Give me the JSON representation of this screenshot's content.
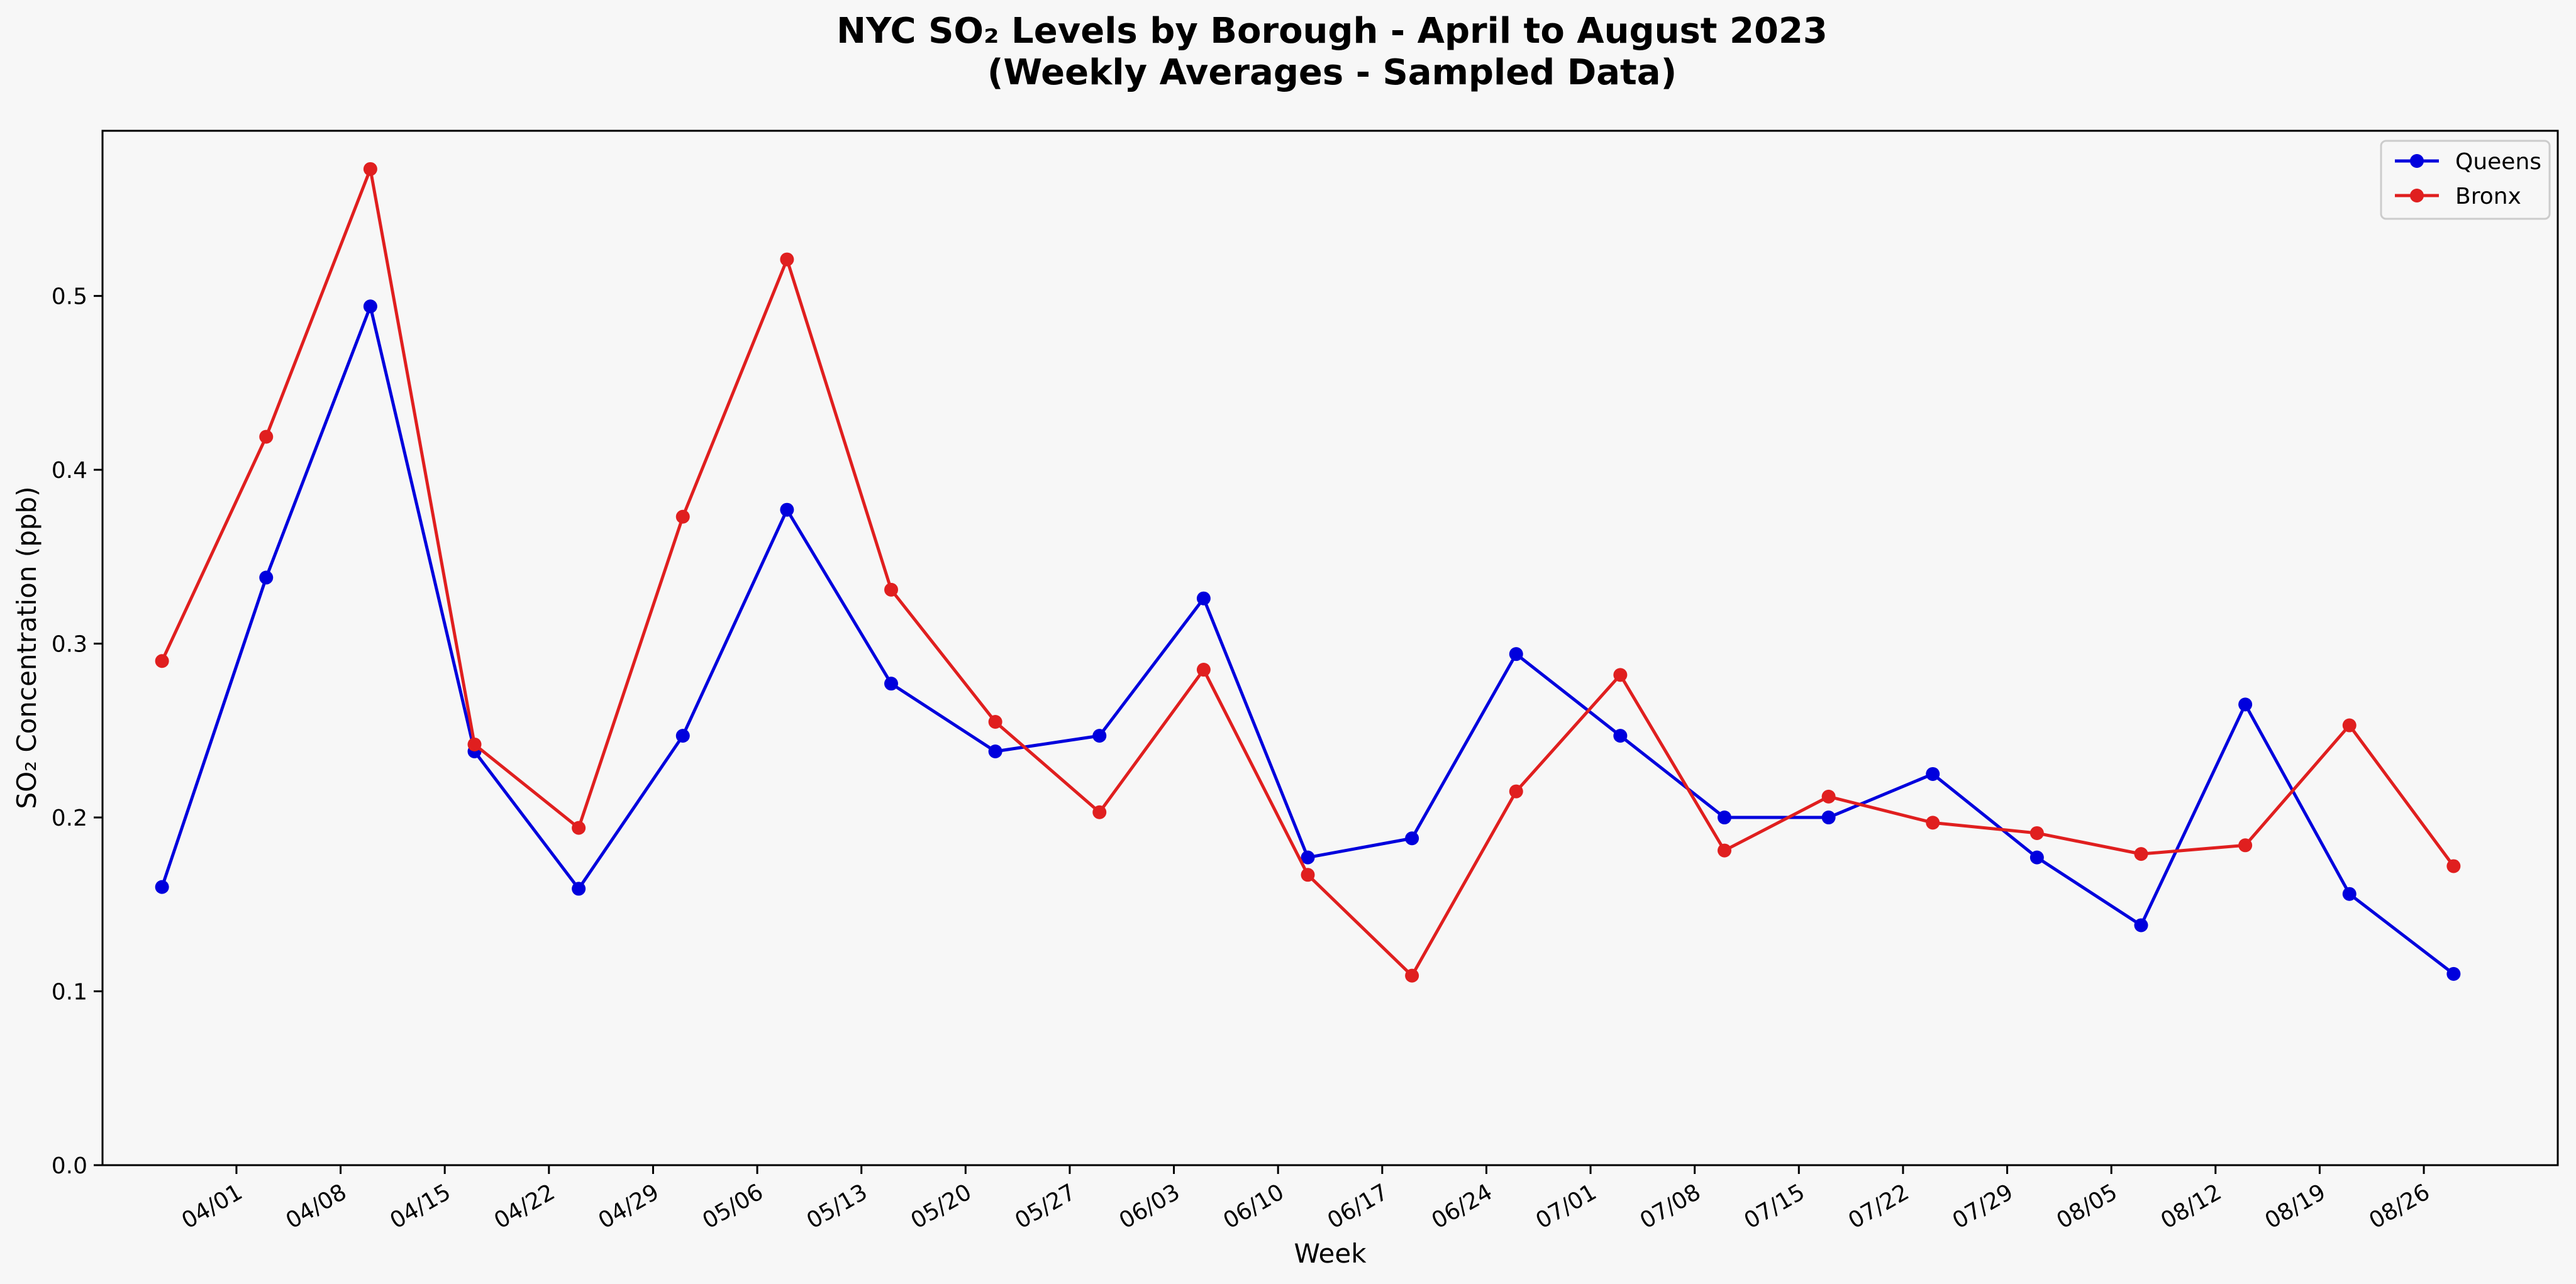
{
  "chart_data": {
    "type": "line",
    "title": "NYC SO₂ Levels by Borough - April to August 2023",
    "subtitle": "(Weekly Averages - Sampled Data)",
    "xlabel": "Week",
    "ylabel": "SO₂ Concentration (ppb)",
    "x": [
      "2023-03-27",
      "2023-04-03",
      "2023-04-10",
      "2023-04-17",
      "2023-04-24",
      "2023-05-01",
      "2023-05-08",
      "2023-05-15",
      "2023-05-22",
      "2023-05-29",
      "2023-06-05",
      "2023-06-12",
      "2023-06-19",
      "2023-06-26",
      "2023-07-03",
      "2023-07-10",
      "2023-07-17",
      "2023-07-24",
      "2023-07-31",
      "2023-08-07",
      "2023-08-14",
      "2023-08-21",
      "2023-08-28"
    ],
    "xticks": [
      "04/01",
      "04/08",
      "04/15",
      "04/22",
      "04/29",
      "05/06",
      "05/13",
      "05/20",
      "05/27",
      "06/03",
      "06/10",
      "06/17",
      "06/24",
      "07/01",
      "07/08",
      "07/15",
      "07/22",
      "07/29",
      "08/05",
      "08/12",
      "08/19",
      "08/26"
    ],
    "xtick_dates": [
      "2023-04-01",
      "2023-04-08",
      "2023-04-15",
      "2023-04-22",
      "2023-04-29",
      "2023-05-06",
      "2023-05-13",
      "2023-05-20",
      "2023-05-27",
      "2023-06-03",
      "2023-06-10",
      "2023-06-17",
      "2023-06-24",
      "2023-07-01",
      "2023-07-08",
      "2023-07-15",
      "2023-07-22",
      "2023-07-29",
      "2023-08-05",
      "2023-08-12",
      "2023-08-19",
      "2023-08-26"
    ],
    "xlim": [
      "2023-03-23",
      "2023-09-04"
    ],
    "yticks": [
      "0.0",
      "0.1",
      "0.2",
      "0.3",
      "0.4",
      "0.5"
    ],
    "ylim": [
      0,
      0.595
    ],
    "grid": false,
    "legend_position": "top-right",
    "series": [
      {
        "name": "Queens",
        "color": "#0000dd",
        "values": [
          0.16,
          0.338,
          0.494,
          0.238,
          0.159,
          0.247,
          0.377,
          0.277,
          0.238,
          0.247,
          0.326,
          0.177,
          0.188,
          0.294,
          0.247,
          0.2,
          0.2,
          0.225,
          0.177,
          0.138,
          0.265,
          0.156,
          0.11
        ]
      },
      {
        "name": "Bronx",
        "color": "#e01f1f",
        "values": [
          0.29,
          0.419,
          0.573,
          0.242,
          0.194,
          0.373,
          0.521,
          0.331,
          0.255,
          0.203,
          0.285,
          0.167,
          0.109,
          0.215,
          0.282,
          0.181,
          0.212,
          0.197,
          0.191,
          0.179,
          0.184,
          0.253,
          0.172
        ]
      }
    ]
  }
}
